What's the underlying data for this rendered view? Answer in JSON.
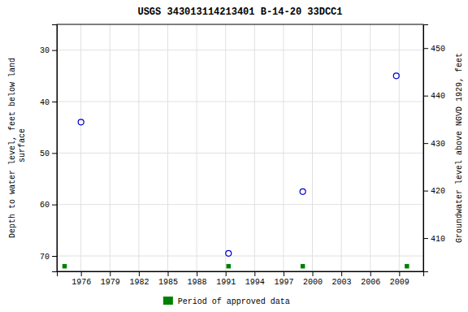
{
  "chart_data": {
    "type": "scatter",
    "title": "USGS 343013114213401 B-14-20 33DCC1",
    "ylabel": "Depth to water level, feet below land\n surface",
    "y2label": "Groundwater level above NGVD 1929, feet",
    "xlim": [
      1973.5,
      2011.5
    ],
    "xticks": [
      1976,
      1979,
      1982,
      1985,
      1988,
      1991,
      1994,
      1997,
      2000,
      2003,
      2006,
      2009
    ],
    "ylim": [
      73,
      25
    ],
    "yticks": [
      30,
      40,
      50,
      60,
      70
    ],
    "y2lim": [
      403,
      455
    ],
    "y2ticks": [
      450,
      440,
      430,
      420,
      410
    ],
    "grid": true,
    "legend": "bottom",
    "series": [
      {
        "color": "#0000cc",
        "marker": "open-circle",
        "x": [
          1976.0,
          1991.3,
          1999.0,
          2008.7
        ],
        "values": [
          44.0,
          69.5,
          57.5,
          35.0
        ]
      },
      {
        "name": "Period of approved data",
        "color": "#008000",
        "marker": "square",
        "x": [
          1974.3,
          1991.3,
          1999.0,
          2009.8
        ],
        "values": [
          72.0,
          72.0,
          72.0,
          72.0
        ]
      }
    ]
  }
}
